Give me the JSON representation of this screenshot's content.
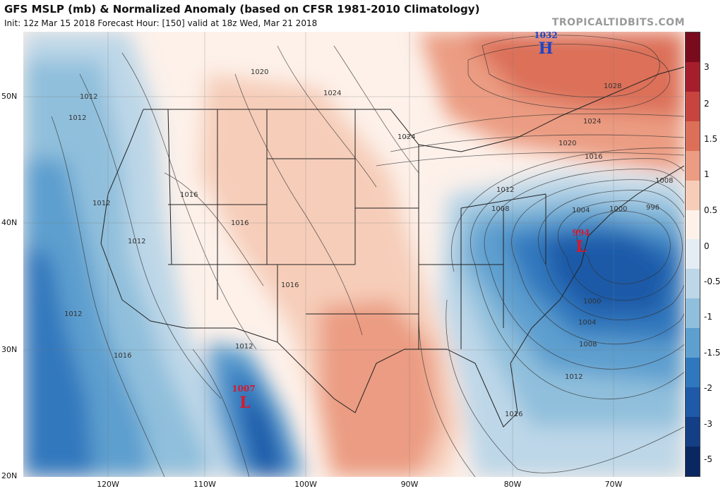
{
  "header": {
    "title": "GFS MSLP (mb) & Normalized Anomaly (based on CFSR 1981-2010 Climatology)",
    "subtitle": "Init: 12z Mar 15 2018   Forecast Hour: [150]   valid at 18z Wed, Mar 21 2018",
    "brand": "TROPICALTIDBITS.COM"
  },
  "axes": {
    "lat_labels": [
      "50N",
      "40N",
      "30N",
      "20N"
    ],
    "lon_labels": [
      "120W",
      "110W",
      "100W",
      "90W",
      "80W",
      "70W"
    ]
  },
  "colorbar": {
    "labels": [
      "3",
      "2",
      "1.5",
      "1",
      "0.5",
      "0",
      "-0.5",
      "-1",
      "-1.5",
      "-2",
      "-3",
      "-5"
    ],
    "colors": [
      "#7a0b1c",
      "#a61e2c",
      "#c8443e",
      "#dc6f58",
      "#eb9c82",
      "#f6cdb9",
      "#fdf1ea",
      "#e4edf4",
      "#bdd7e8",
      "#90bfdc",
      "#5d9fcf",
      "#3078bd",
      "#1e5aa8",
      "#143f86",
      "#0b2761"
    ]
  },
  "systems": [
    {
      "kind": "H",
      "value": "1032",
      "color": "#1d45c9"
    },
    {
      "kind": "L",
      "value": "994",
      "color": "#d7192c"
    },
    {
      "kind": "L",
      "value": "1007",
      "color": "#d7192c"
    }
  ],
  "isobar_labels": [
    "1020",
    "1024",
    "1012",
    "1012",
    "1016",
    "1012",
    "1016",
    "1012",
    "1016",
    "1012",
    "1016",
    "1012",
    "1024",
    "1020",
    "1016",
    "1028",
    "1024",
    "1012",
    "1008",
    "1008",
    "1004",
    "1000",
    "996",
    "1000",
    "1004",
    "1008",
    "1012",
    "1016"
  ]
}
